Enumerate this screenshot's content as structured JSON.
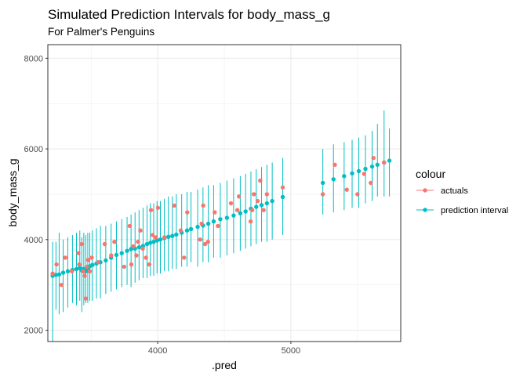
{
  "chart_data": {
    "type": "scatter",
    "title": "Simulated Prediction Intervals for body_mass_g",
    "subtitle": "For Palmer's Penguins",
    "xlabel": ".pred",
    "ylabel": "body_mass_g",
    "xlim": [
      3175,
      5825
    ],
    "ylim": [
      1750,
      8300
    ],
    "x_ticks": [
      4000,
      5000
    ],
    "y_ticks": [
      2000,
      4000,
      6000,
      8000
    ],
    "grid": true,
    "legend": {
      "title": "colour",
      "position": "right"
    },
    "colors": {
      "actuals": "#F8766D",
      "prediction interval": "#00BFC4"
    },
    "series": [
      {
        "name": "actuals",
        "points": [
          [
            3211,
            3250
          ],
          [
            3240,
            3450
          ],
          [
            3278,
            3000
          ],
          [
            3306,
            3600
          ],
          [
            3356,
            3300
          ],
          [
            3404,
            3700
          ],
          [
            3410,
            3450
          ],
          [
            3428,
            3900
          ],
          [
            3440,
            3300
          ],
          [
            3452,
            3200
          ],
          [
            3460,
            2700
          ],
          [
            3468,
            3400
          ],
          [
            3478,
            3550
          ],
          [
            3490,
            3300
          ],
          [
            3505,
            3600
          ],
          [
            3553,
            3500
          ],
          [
            3602,
            3900
          ],
          [
            3651,
            3650
          ],
          [
            3675,
            3950
          ],
          [
            3748,
            3400
          ],
          [
            3790,
            4300
          ],
          [
            3802,
            3450
          ],
          [
            3818,
            3850
          ],
          [
            3840,
            3650
          ],
          [
            3852,
            3950
          ],
          [
            3870,
            4200
          ],
          [
            3888,
            3800
          ],
          [
            3912,
            3600
          ],
          [
            3937,
            3450
          ],
          [
            3950,
            4650
          ],
          [
            3961,
            4100
          ],
          [
            3985,
            4050
          ],
          [
            4002,
            4700
          ],
          [
            4051,
            4050
          ],
          [
            4124,
            4750
          ],
          [
            4173,
            4200
          ],
          [
            4198,
            3600
          ],
          [
            4222,
            4600
          ],
          [
            4319,
            4000
          ],
          [
            4330,
            4350
          ],
          [
            4342,
            4750
          ],
          [
            4356,
            3900
          ],
          [
            4378,
            3950
          ],
          [
            4428,
            4600
          ],
          [
            4452,
            4300
          ],
          [
            4550,
            4800
          ],
          [
            4598,
            4650
          ],
          [
            4610,
            4950
          ],
          [
            4698,
            4400
          ],
          [
            4710,
            4650
          ],
          [
            4722,
            5000
          ],
          [
            4750,
            4850
          ],
          [
            4770,
            5300
          ],
          [
            4795,
            4650
          ],
          [
            4820,
            5000
          ],
          [
            4939,
            5150
          ],
          [
            5240,
            5000
          ],
          [
            5330,
            5650
          ],
          [
            5420,
            5100
          ],
          [
            5500,
            5000
          ],
          [
            5550,
            5450
          ],
          [
            5600,
            5250
          ],
          [
            5620,
            5800
          ],
          [
            5700,
            5700
          ]
        ]
      },
      {
        "name": "prediction interval",
        "points": [
          [
            3211,
            3200,
            1700,
            3950
          ],
          [
            3236,
            3220,
            2450,
            3950
          ],
          [
            3260,
            3230,
            2350,
            4150
          ],
          [
            3290,
            3270,
            2400,
            4000
          ],
          [
            3325,
            3300,
            2500,
            4050
          ],
          [
            3360,
            3330,
            2600,
            4100
          ],
          [
            3390,
            3350,
            2550,
            4150
          ],
          [
            3415,
            3370,
            2650,
            4200
          ],
          [
            3430,
            3320,
            2400,
            4050
          ],
          [
            3445,
            3350,
            2550,
            4150
          ],
          [
            3460,
            3300,
            2600,
            4100
          ],
          [
            3475,
            3360,
            2600,
            4150
          ],
          [
            3490,
            3410,
            2650,
            4150
          ],
          [
            3510,
            3440,
            2650,
            4200
          ],
          [
            3540,
            3470,
            2700,
            4250
          ],
          [
            3570,
            3500,
            2700,
            4300
          ],
          [
            3610,
            3540,
            2800,
            4300
          ],
          [
            3650,
            3600,
            2850,
            4350
          ],
          [
            3690,
            3660,
            2900,
            4400
          ],
          [
            3730,
            3700,
            2950,
            4450
          ],
          [
            3770,
            3750,
            3000,
            4500
          ],
          [
            3800,
            3790,
            2950,
            4550
          ],
          [
            3830,
            3800,
            3050,
            4600
          ],
          [
            3860,
            3830,
            3100,
            4650
          ],
          [
            3890,
            3860,
            3150,
            4700
          ],
          [
            3920,
            3900,
            3150,
            4750
          ],
          [
            3945,
            3930,
            3200,
            4800
          ],
          [
            3970,
            3950,
            3200,
            4800
          ],
          [
            3995,
            3980,
            3250,
            4850
          ],
          [
            4020,
            4000,
            3250,
            4850
          ],
          [
            4050,
            4030,
            3300,
            4900
          ],
          [
            4080,
            4060,
            3300,
            4950
          ],
          [
            4110,
            4080,
            3350,
            4950
          ],
          [
            4140,
            4110,
            3350,
            5000
          ],
          [
            4180,
            4150,
            3400,
            5000
          ],
          [
            4220,
            4200,
            3400,
            5050
          ],
          [
            4250,
            4230,
            3500,
            5050
          ],
          [
            4300,
            4280,
            3400,
            5100
          ],
          [
            4340,
            4310,
            3500,
            5150
          ],
          [
            4380,
            4350,
            3500,
            5200
          ],
          [
            4420,
            4400,
            3600,
            5200
          ],
          [
            4470,
            4450,
            3600,
            5250
          ],
          [
            4520,
            4480,
            3650,
            5300
          ],
          [
            4570,
            4530,
            3700,
            5350
          ],
          [
            4620,
            4580,
            3750,
            5400
          ],
          [
            4660,
            4620,
            3800,
            5450
          ],
          [
            4700,
            4680,
            3850,
            5500
          ],
          [
            4740,
            4720,
            3900,
            5550
          ],
          [
            4780,
            4760,
            3950,
            5600
          ],
          [
            4820,
            4800,
            3950,
            5650
          ],
          [
            4860,
            4850,
            4000,
            5700
          ],
          [
            4939,
            4940,
            4100,
            5800
          ],
          [
            5240,
            5250,
            4550,
            6000
          ],
          [
            5320,
            5330,
            4600,
            6100
          ],
          [
            5400,
            5400,
            4650,
            6150
          ],
          [
            5460,
            5460,
            4700,
            6200
          ],
          [
            5510,
            5510,
            4700,
            6250
          ],
          [
            5560,
            5560,
            4800,
            6300
          ],
          [
            5610,
            5610,
            4850,
            6400
          ],
          [
            5650,
            5650,
            4950,
            6550
          ],
          [
            5700,
            5700,
            4950,
            6850
          ],
          [
            5740,
            5740,
            4950,
            6450
          ]
        ]
      }
    ]
  }
}
